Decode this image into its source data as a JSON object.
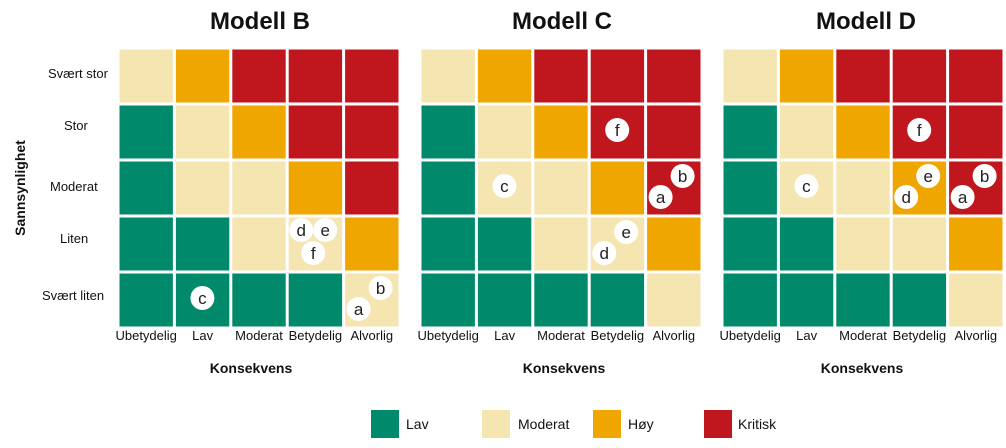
{
  "chart_data": {
    "type": "heatmap",
    "y_axis_title": "Sannsynlighet",
    "x_axis_title": "Konsekvens",
    "rows": [
      "Svært stor",
      "Stor",
      "Moderat",
      "Liten",
      "Svært liten"
    ],
    "columns": [
      "Ubetydelig",
      "Lav",
      "Moderat",
      "Betydelig",
      "Alvorlig"
    ],
    "colors": {
      "Lav": "#008a6b",
      "Moderat": "#f5e5b0",
      "Høy": "#f0a600",
      "Kritisk": "#c0161d"
    },
    "legend": [
      "Lav",
      "Moderat",
      "Høy",
      "Kritisk"
    ],
    "panels": [
      {
        "title": "Modell B",
        "cells": [
          [
            "Moderat",
            "Høy",
            "Kritisk",
            "Kritisk",
            "Kritisk"
          ],
          [
            "Lav",
            "Moderat",
            "Høy",
            "Kritisk",
            "Kritisk"
          ],
          [
            "Lav",
            "Moderat",
            "Moderat",
            "Høy",
            "Kritisk"
          ],
          [
            "Lav",
            "Lav",
            "Moderat",
            "Moderat",
            "Høy"
          ],
          [
            "Lav",
            "Lav",
            "Lav",
            "Lav",
            "Moderat"
          ]
        ],
        "markers": [
          {
            "label": "d",
            "row": "Liten",
            "col": "Betydelig"
          },
          {
            "label": "e",
            "row": "Liten",
            "col": "Betydelig"
          },
          {
            "label": "f",
            "row": "Liten",
            "col": "Betydelig"
          },
          {
            "label": "c",
            "row": "Svært liten",
            "col": "Lav"
          },
          {
            "label": "a",
            "row": "Svært liten",
            "col": "Alvorlig"
          },
          {
            "label": "b",
            "row": "Svært liten",
            "col": "Alvorlig"
          }
        ]
      },
      {
        "title": "Modell C",
        "cells": [
          [
            "Moderat",
            "Høy",
            "Kritisk",
            "Kritisk",
            "Kritisk"
          ],
          [
            "Lav",
            "Moderat",
            "Høy",
            "Kritisk",
            "Kritisk"
          ],
          [
            "Lav",
            "Moderat",
            "Moderat",
            "Høy",
            "Kritisk"
          ],
          [
            "Lav",
            "Lav",
            "Moderat",
            "Moderat",
            "Høy"
          ],
          [
            "Lav",
            "Lav",
            "Lav",
            "Lav",
            "Moderat"
          ]
        ],
        "markers": [
          {
            "label": "f",
            "row": "Stor",
            "col": "Betydelig"
          },
          {
            "label": "c",
            "row": "Moderat",
            "col": "Lav"
          },
          {
            "label": "a",
            "row": "Moderat",
            "col": "Alvorlig"
          },
          {
            "label": "b",
            "row": "Moderat",
            "col": "Alvorlig"
          },
          {
            "label": "d",
            "row": "Liten",
            "col": "Betydelig"
          },
          {
            "label": "e",
            "row": "Liten",
            "col": "Betydelig"
          }
        ]
      },
      {
        "title": "Modell D",
        "cells": [
          [
            "Moderat",
            "Høy",
            "Kritisk",
            "Kritisk",
            "Kritisk"
          ],
          [
            "Lav",
            "Moderat",
            "Høy",
            "Kritisk",
            "Kritisk"
          ],
          [
            "Lav",
            "Moderat",
            "Moderat",
            "Høy",
            "Kritisk"
          ],
          [
            "Lav",
            "Lav",
            "Moderat",
            "Moderat",
            "Høy"
          ],
          [
            "Lav",
            "Lav",
            "Lav",
            "Lav",
            "Moderat"
          ]
        ],
        "markers": [
          {
            "label": "f",
            "row": "Stor",
            "col": "Betydelig"
          },
          {
            "label": "c",
            "row": "Moderat",
            "col": "Lav"
          },
          {
            "label": "d",
            "row": "Moderat",
            "col": "Betydelig"
          },
          {
            "label": "e",
            "row": "Moderat",
            "col": "Betydelig"
          },
          {
            "label": "a",
            "row": "Moderat",
            "col": "Alvorlig"
          },
          {
            "label": "b",
            "row": "Moderat",
            "col": "Alvorlig"
          }
        ]
      }
    ]
  }
}
